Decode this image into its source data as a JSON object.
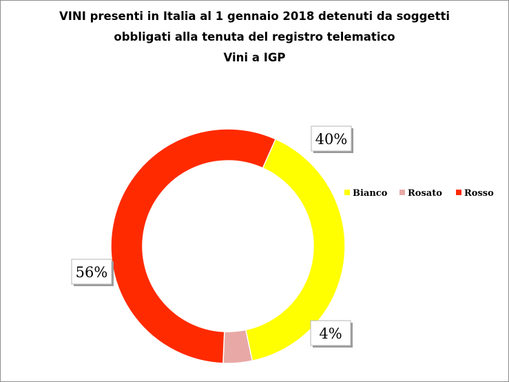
{
  "chart_data": {
    "type": "pie",
    "variant": "doughnut",
    "title": [
      "VINI presenti in Italia  al 1 gennaio 2018 detenuti da soggetti",
      "obbligati alla tenuta del registro telematico",
      "Vini a IGP"
    ],
    "categories": [
      "Bianco",
      "Rosato",
      "Rosso"
    ],
    "values": [
      40,
      4,
      56
    ],
    "data_labels": [
      "40%",
      "4%",
      "56%"
    ],
    "colors": [
      "#ffff00",
      "#e8a9a6",
      "#ff2a00"
    ],
    "legend_position": "right",
    "grid": false
  }
}
